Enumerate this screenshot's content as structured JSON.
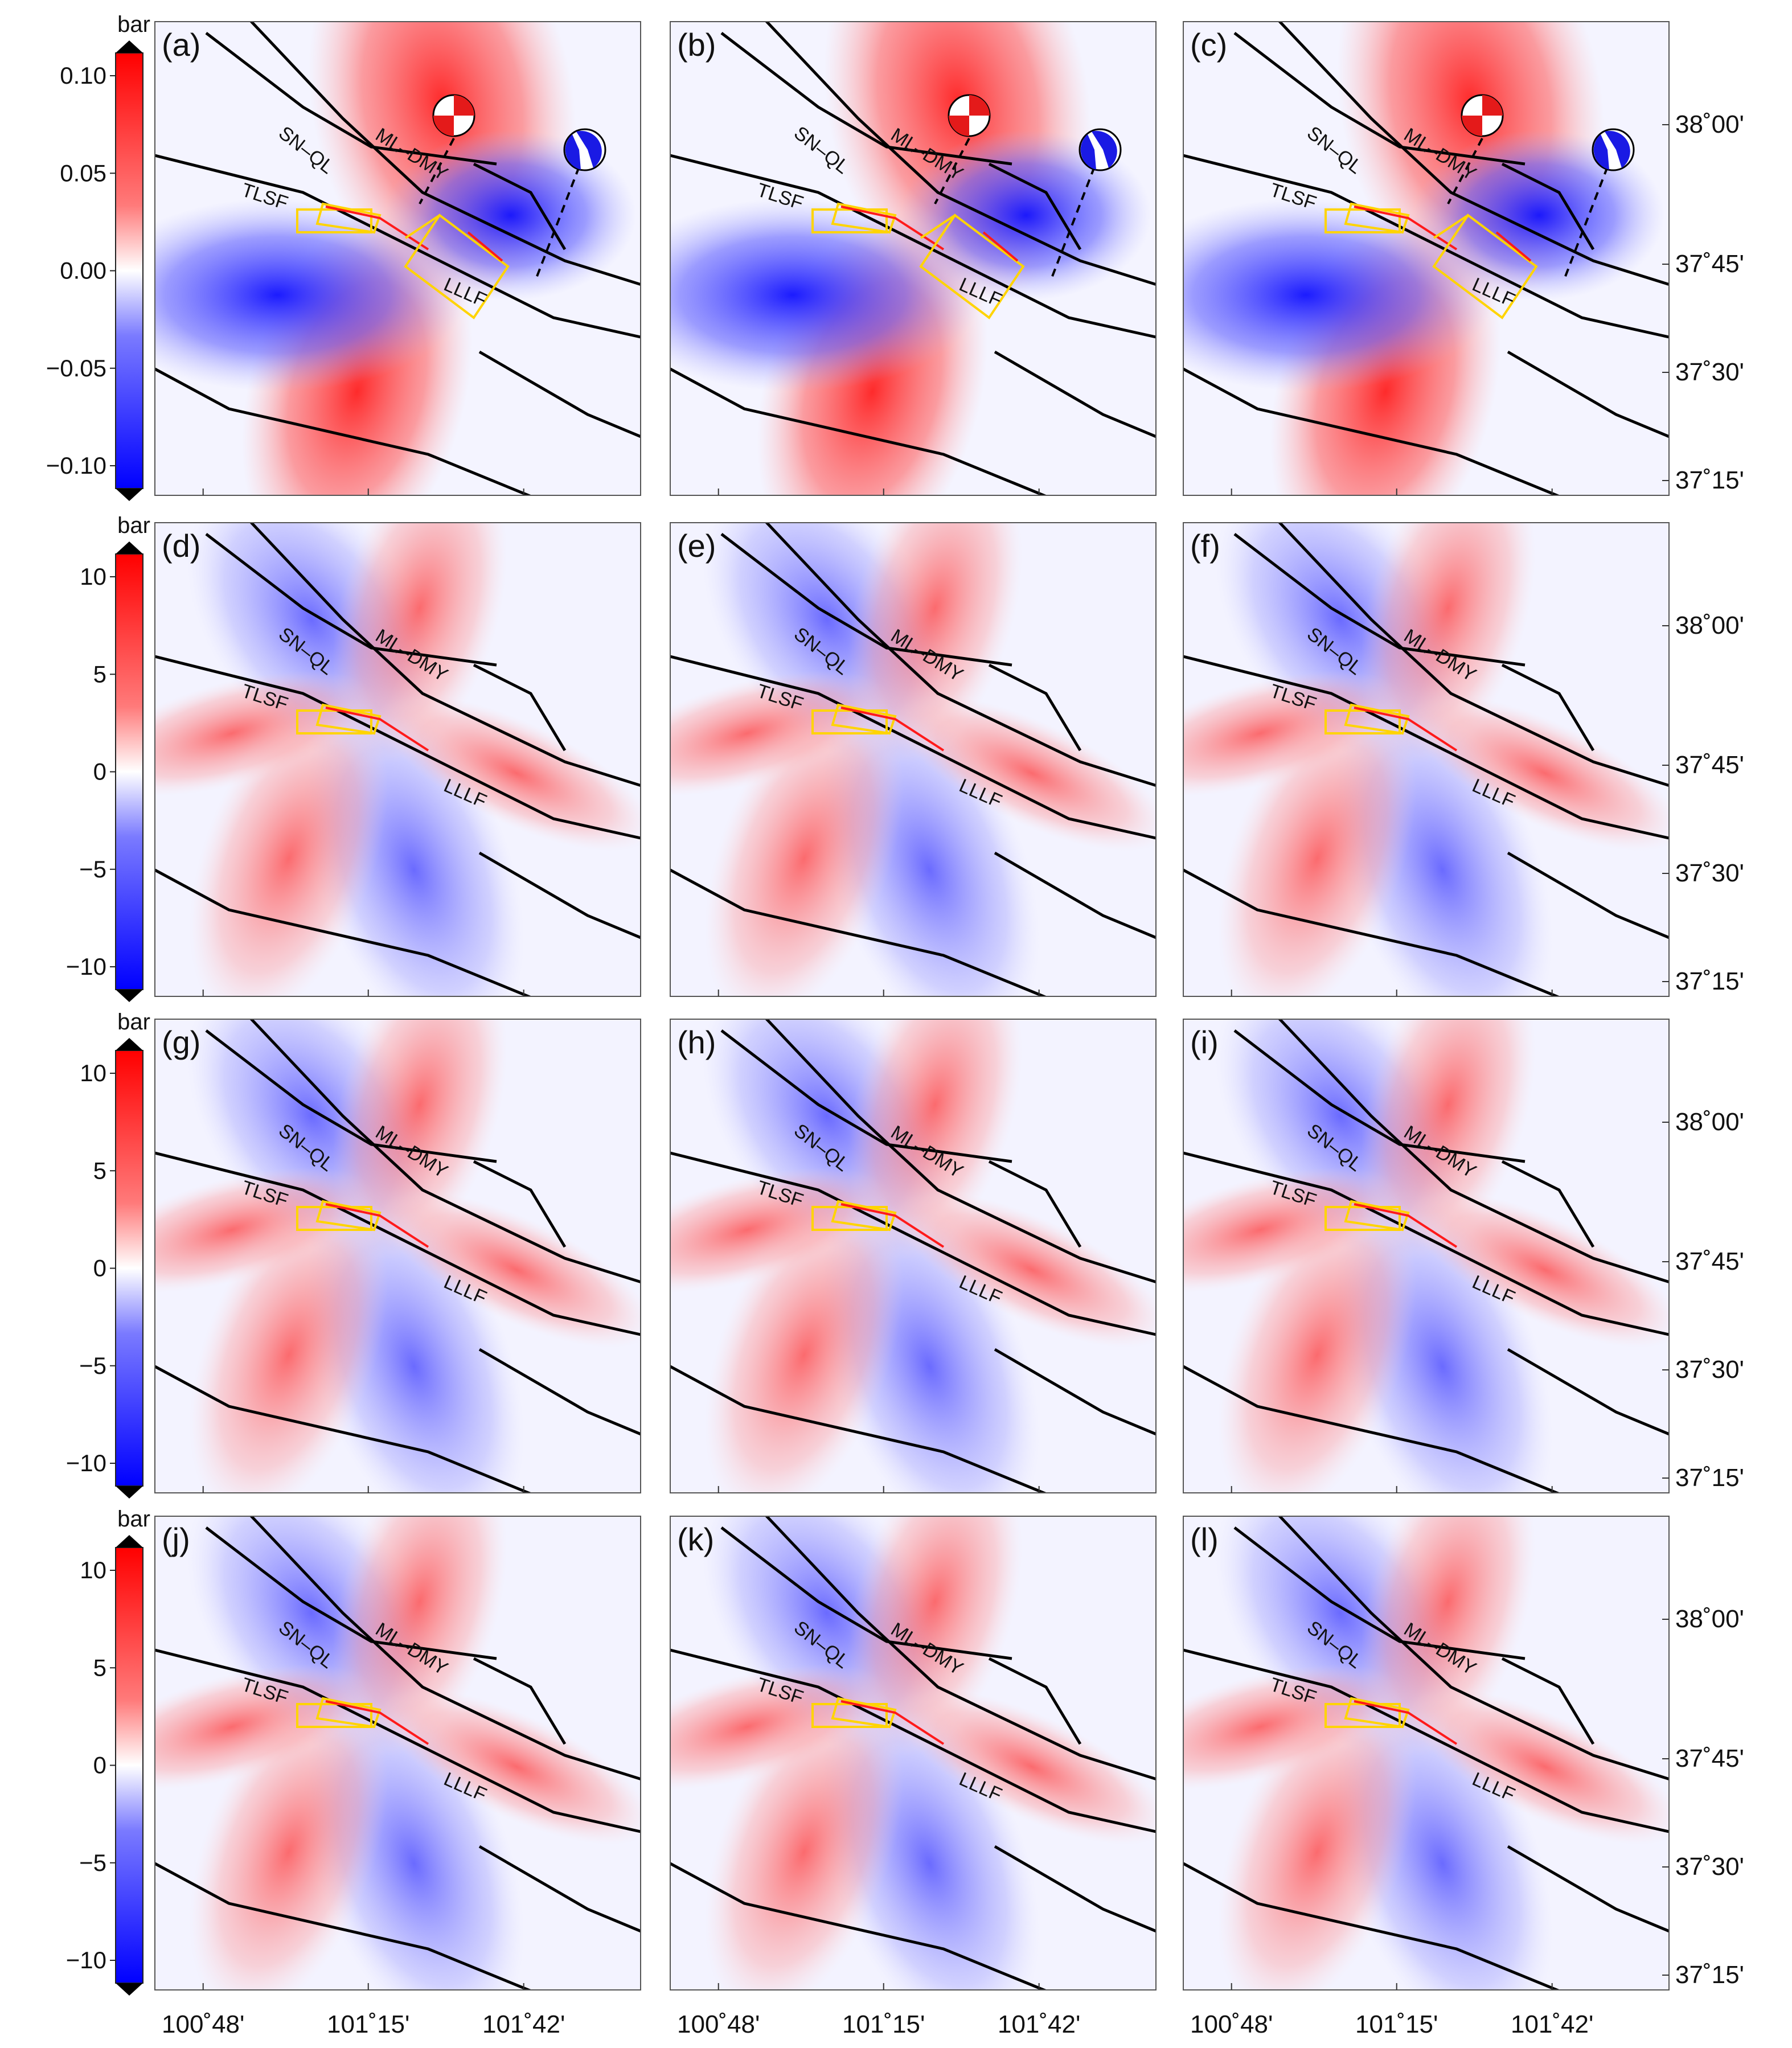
{
  "colorbars": [
    {
      "unit": "bar",
      "ticks": [
        "0.10",
        "0.05",
        "0.00",
        "−0.05",
        "−0.10"
      ]
    },
    {
      "unit": "bar",
      "ticks": [
        "10",
        "5",
        "0",
        "−5",
        "−10"
      ]
    },
    {
      "unit": "bar",
      "ticks": [
        "10",
        "5",
        "0",
        "−5",
        "−10"
      ]
    },
    {
      "unit": "bar",
      "ticks": [
        "10",
        "5",
        "0",
        "−5",
        "−10"
      ]
    }
  ],
  "panel_letters": [
    "(a)",
    "(b)",
    "(c)",
    "(d)",
    "(e)",
    "(f)",
    "(g)",
    "(h)",
    "(i)",
    "(j)",
    "(k)",
    "(l)"
  ],
  "fault_labels": {
    "snql": "SN–QL",
    "mldmy": "ML–DMY",
    "tlsf": "TLSF",
    "lllf": "LLLF"
  },
  "lat_ticks": [
    "38˚00'",
    "37˚45'",
    "37˚30'",
    "37˚15'"
  ],
  "lon_ticks": [
    "100˚48'",
    "101˚15'",
    "101˚42'"
  ],
  "colors": {
    "positive": "#ff0000",
    "negative": "#0000ff",
    "zero": "#ffffff",
    "fault": "#000000",
    "rupture_outline": "#ffd400",
    "rupture_trace": "#ff0000"
  },
  "colormap": "blue-white-red diverging",
  "icons": [
    "focal-mechanism-beachball-icon",
    "colorbar-arrow-icon"
  ]
}
